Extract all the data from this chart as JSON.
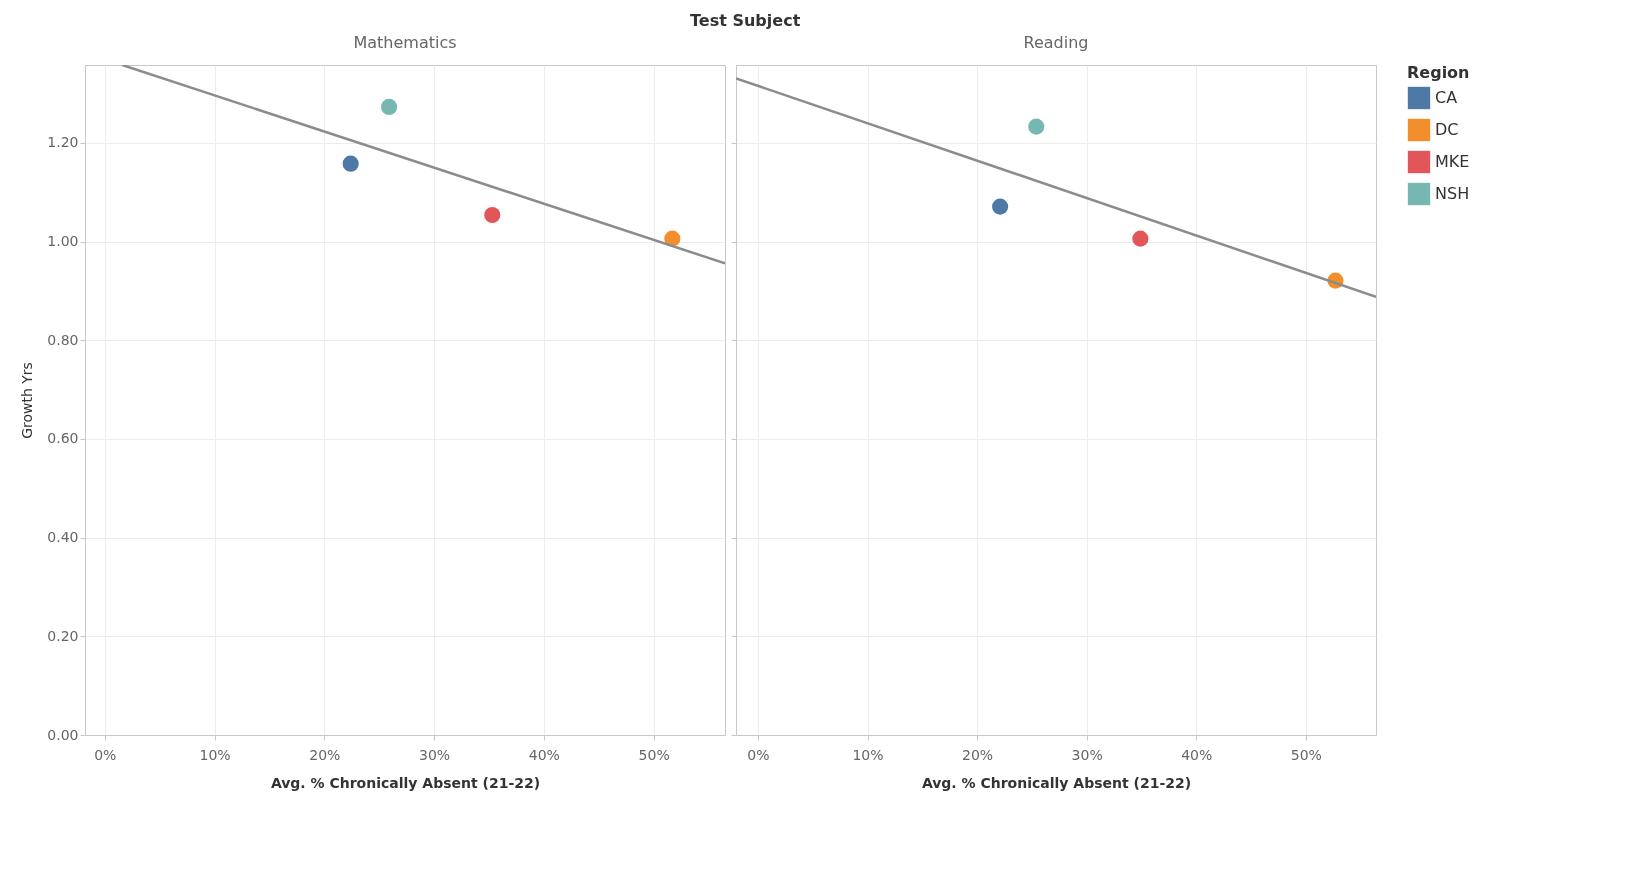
{
  "chart_data": [
    {
      "type": "scatter",
      "title": "Mathematics",
      "annotations": [
        "Test Subject"
      ],
      "legend_title": "Region",
      "legend": "top right",
      "xlabel": "Avg. % Chronically Absent (21-22)",
      "ylabel": "Growth Yrs",
      "xlim": [
        -1.8,
        56.5
      ],
      "xticks": [
        {
          "value": 0,
          "label": "0%"
        },
        {
          "value": 10,
          "label": "10%"
        },
        {
          "value": 20,
          "label": "20%"
        },
        {
          "value": 30,
          "label": "30%"
        },
        {
          "value": 40,
          "label": "40%"
        },
        {
          "value": 50,
          "label": "50%"
        }
      ],
      "ylim": [
        0,
        1.358
      ],
      "yticks": [
        {
          "value": 0,
          "label": "0.00"
        },
        {
          "value": 0.2,
          "label": "0.20"
        },
        {
          "value": 0.4,
          "label": "0.40"
        },
        {
          "value": 0.6,
          "label": "0.60"
        },
        {
          "value": 0.8,
          "label": "0.80"
        },
        {
          "value": 1,
          "label": "1.00"
        },
        {
          "value": 1.2,
          "label": "1.20"
        }
      ],
      "grid": true,
      "marker": "circle",
      "series": [
        {
          "name": "CA",
          "color": "#4e79a7",
          "x": [
            22.4
          ],
          "values": [
            1.158
          ]
        },
        {
          "name": "DC",
          "color": "#f28e2b",
          "x": [
            51.7
          ],
          "values": [
            1.006
          ]
        },
        {
          "name": "MKE",
          "color": "#e15759",
          "x": [
            35.3
          ],
          "values": [
            1.054
          ]
        },
        {
          "name": "NSH",
          "color": "#76b7b2",
          "x": [
            25.9
          ],
          "values": [
            1.273
          ]
        },
        {
          "type": "line",
          "marker": "none",
          "color": "#8c8c8c",
          "x": [
            1.6,
            56.5
          ],
          "values": [
            1.358,
            0.956
          ]
        }
      ]
    },
    {
      "type": "scatter",
      "title": "Reading",
      "xlabel": "Avg. % Chronically Absent (21-22)",
      "tick_labels": "x",
      "xlim": [
        -2,
        56.4
      ],
      "xticks": [
        {
          "value": 0,
          "label": "0%"
        },
        {
          "value": 10,
          "label": "10%"
        },
        {
          "value": 20,
          "label": "20%"
        },
        {
          "value": 30,
          "label": "30%"
        },
        {
          "value": 40,
          "label": "40%"
        },
        {
          "value": 50,
          "label": "50%"
        }
      ],
      "ylim": [
        0,
        1.358
      ],
      "yticks": [
        0,
        0.2,
        0.4,
        0.6,
        0.8,
        1,
        1.2
      ],
      "grid": true,
      "marker": "circle",
      "series": [
        {
          "name": "CA",
          "color": "#4e79a7",
          "x": [
            22.1
          ],
          "values": [
            1.071
          ]
        },
        {
          "name": "DC",
          "color": "#f28e2b",
          "x": [
            52.7
          ],
          "values": [
            0.921
          ]
        },
        {
          "name": "MKE",
          "color": "#e15759",
          "x": [
            34.9
          ],
          "values": [
            1.006
          ]
        },
        {
          "name": "NSH",
          "color": "#76b7b2",
          "x": [
            25.4
          ],
          "values": [
            1.233
          ]
        },
        {
          "type": "line",
          "marker": "none",
          "color": "#8c8c8c",
          "x": [
            -2,
            56.4
          ],
          "values": [
            1.331,
            0.888
          ]
        }
      ]
    }
  ]
}
